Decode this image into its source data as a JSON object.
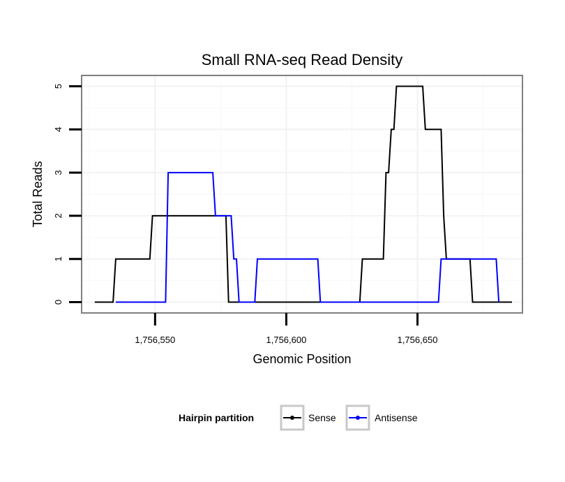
{
  "chart_data": {
    "type": "line",
    "title": "Small RNA-seq Read Density",
    "xlabel": "Genomic Position",
    "ylabel": "Total Reads",
    "xlim": [
      1756522,
      1756690
    ],
    "ylim": [
      -0.25,
      5.25
    ],
    "xticks": [
      1756550,
      1756600,
      1756650
    ],
    "xtick_labels": [
      "1,756,550",
      "1,756,600",
      "1,756,650"
    ],
    "yticks": [
      0,
      1,
      2,
      3,
      4,
      5
    ],
    "ytick_labels": [
      "0",
      "1",
      "2",
      "3",
      "4",
      "5"
    ],
    "grid": true,
    "legend": {
      "title": "Hairpin partition",
      "position": "bottom",
      "entries": [
        "Sense",
        "Antisense"
      ]
    },
    "series": [
      {
        "name": "Sense",
        "color": "#000000",
        "x": [
          1756527,
          1756534,
          1756535,
          1756548,
          1756549,
          1756577,
          1756578,
          1756628,
          1756629,
          1756637,
          1756638,
          1756639,
          1756640,
          1756641,
          1756642,
          1756652,
          1756653,
          1756659,
          1756660,
          1756661,
          1756670,
          1756671,
          1756686
        ],
        "y": [
          0,
          0,
          1,
          1,
          2,
          2,
          0,
          0,
          1,
          1,
          3,
          3,
          4,
          4,
          5,
          5,
          4,
          4,
          2,
          1,
          1,
          0,
          0
        ]
      },
      {
        "name": "Antisense",
        "color": "#0000ff",
        "x": [
          1756535,
          1756554,
          1756555,
          1756572,
          1756573,
          1756578,
          1756579,
          1756580,
          1756581,
          1756582,
          1756583,
          1756588,
          1756589,
          1756612,
          1756613,
          1756658,
          1756659,
          1756680,
          1756681
        ],
        "y": [
          0,
          0,
          3,
          3,
          2,
          2,
          2,
          1,
          1,
          0,
          0,
          0,
          1,
          1,
          0,
          0,
          1,
          1,
          0
        ]
      }
    ]
  }
}
